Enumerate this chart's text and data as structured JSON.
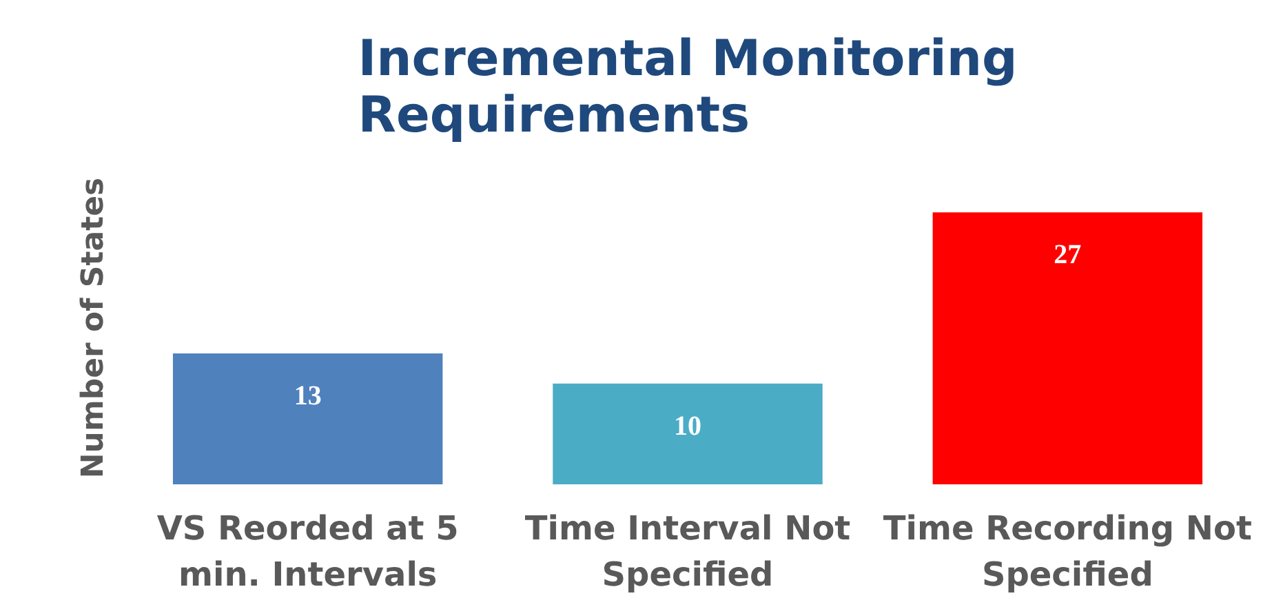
{
  "chart_data": {
    "type": "bar",
    "title": "Incremental Monitoring Requirements",
    "ylabel": "Number of States",
    "categories": [
      "VS Reorded at 5 min. Intervals",
      "Time Interval Not Specified",
      "Time Recording Not Specified"
    ],
    "values": [
      13,
      10,
      27
    ],
    "colors": [
      "#4f81bd",
      "#4bacc6",
      "#ff0000"
    ],
    "data_labels": true
  }
}
